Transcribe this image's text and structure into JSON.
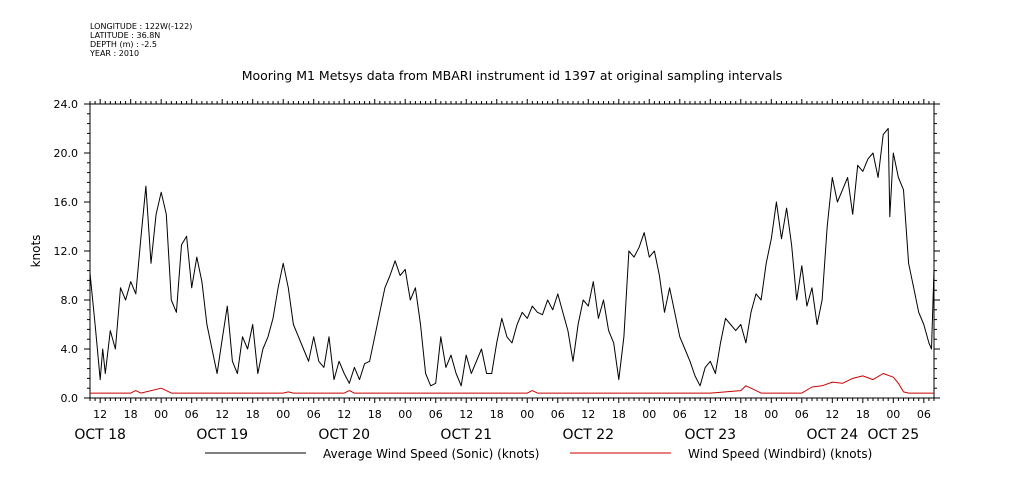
{
  "meta": {
    "longitude": "LONGITUDE : 122W(-122)",
    "latitude": "LATITUDE : 36.8N",
    "depth": "DEPTH (m) : -2.5",
    "year": "YEAR : 2010"
  },
  "chart_data": {
    "type": "line",
    "title": "Mooring M1 Metsys data from MBARI instrument id 1397 at original sampling intervals",
    "ylabel": "knots",
    "ylim": [
      0,
      24
    ],
    "yticks": [
      "0.0",
      "4.0",
      "8.0",
      "12.0",
      "16.0",
      "20.0",
      "24.0"
    ],
    "xlim": [
      10,
      176
    ],
    "hour_tick_labels": [
      {
        "h": 12,
        "label": "12"
      },
      {
        "h": 18,
        "label": "18"
      },
      {
        "h": 24,
        "label": "00"
      },
      {
        "h": 30,
        "label": "06"
      },
      {
        "h": 36,
        "label": "12"
      },
      {
        "h": 42,
        "label": "18"
      },
      {
        "h": 48,
        "label": "00"
      },
      {
        "h": 54,
        "label": "06"
      },
      {
        "h": 60,
        "label": "12"
      },
      {
        "h": 66,
        "label": "18"
      },
      {
        "h": 72,
        "label": "00"
      },
      {
        "h": 78,
        "label": "06"
      },
      {
        "h": 84,
        "label": "12"
      },
      {
        "h": 90,
        "label": "18"
      },
      {
        "h": 96,
        "label": "00"
      },
      {
        "h": 102,
        "label": "06"
      },
      {
        "h": 108,
        "label": "12"
      },
      {
        "h": 114,
        "label": "18"
      },
      {
        "h": 120,
        "label": "00"
      },
      {
        "h": 126,
        "label": "06"
      },
      {
        "h": 132,
        "label": "12"
      },
      {
        "h": 138,
        "label": "18"
      },
      {
        "h": 144,
        "label": "00"
      },
      {
        "h": 150,
        "label": "06"
      },
      {
        "h": 156,
        "label": "12"
      },
      {
        "h": 162,
        "label": "18"
      },
      {
        "h": 168,
        "label": "00"
      },
      {
        "h": 174,
        "label": "06"
      }
    ],
    "day_labels": [
      {
        "h": 12,
        "label": "OCT 18"
      },
      {
        "h": 36,
        "label": "OCT 19"
      },
      {
        "h": 60,
        "label": "OCT 20"
      },
      {
        "h": 84,
        "label": "OCT 21"
      },
      {
        "h": 108,
        "label": "OCT 22"
      },
      {
        "h": 132,
        "label": "OCT 23"
      },
      {
        "h": 156,
        "label": "OCT 24"
      },
      {
        "h": 168,
        "label": "OCT 25"
      }
    ],
    "series": [
      {
        "name": "Average Wind Speed (Sonic) (knots)",
        "color": "#000000",
        "points": [
          [
            10,
            10.2
          ],
          [
            11,
            6
          ],
          [
            12,
            1.5
          ],
          [
            12.5,
            4
          ],
          [
            13,
            2
          ],
          [
            14,
            5.5
          ],
          [
            15,
            4
          ],
          [
            16,
            9
          ],
          [
            17,
            8
          ],
          [
            18,
            9.5
          ],
          [
            19,
            8.5
          ],
          [
            20,
            13
          ],
          [
            21,
            17.3
          ],
          [
            22,
            11
          ],
          [
            23,
            15
          ],
          [
            24,
            16.8
          ],
          [
            25,
            15
          ],
          [
            26,
            8
          ],
          [
            27,
            7
          ],
          [
            28,
            12.5
          ],
          [
            29,
            13.2
          ],
          [
            30,
            9
          ],
          [
            31,
            11.5
          ],
          [
            32,
            9.5
          ],
          [
            33,
            6
          ],
          [
            34,
            4
          ],
          [
            35,
            2
          ],
          [
            36,
            4.8
          ],
          [
            37,
            7.5
          ],
          [
            38,
            3
          ],
          [
            39,
            2
          ],
          [
            40,
            5
          ],
          [
            41,
            4
          ],
          [
            42,
            6
          ],
          [
            43,
            2
          ],
          [
            44,
            4
          ],
          [
            45,
            5
          ],
          [
            46,
            6.5
          ],
          [
            47,
            9
          ],
          [
            48,
            11
          ],
          [
            49,
            9
          ],
          [
            50,
            6
          ],
          [
            51,
            5
          ],
          [
            52,
            4
          ],
          [
            53,
            3
          ],
          [
            54,
            5
          ],
          [
            55,
            3
          ],
          [
            56,
            2.5
          ],
          [
            57,
            5
          ],
          [
            58,
            1.5
          ],
          [
            59,
            3
          ],
          [
            60,
            2
          ],
          [
            61,
            1.2
          ],
          [
            62,
            2.5
          ],
          [
            63,
            1.5
          ],
          [
            64,
            2.8
          ],
          [
            65,
            3
          ],
          [
            66,
            5
          ],
          [
            67,
            7
          ],
          [
            68,
            9
          ],
          [
            69,
            10
          ],
          [
            70,
            11.2
          ],
          [
            71,
            10
          ],
          [
            72,
            10.5
          ],
          [
            73,
            8
          ],
          [
            74,
            9
          ],
          [
            75,
            6
          ],
          [
            76,
            2
          ],
          [
            77,
            1
          ],
          [
            78,
            1.2
          ],
          [
            79,
            5
          ],
          [
            80,
            2.5
          ],
          [
            81,
            3.5
          ],
          [
            82,
            2
          ],
          [
            83,
            1
          ],
          [
            84,
            3.5
          ],
          [
            85,
            2
          ],
          [
            86,
            3
          ],
          [
            87,
            4
          ],
          [
            88,
            2
          ],
          [
            89,
            2
          ],
          [
            90,
            4.5
          ],
          [
            91,
            6.5
          ],
          [
            92,
            5
          ],
          [
            93,
            4.5
          ],
          [
            94,
            6
          ],
          [
            95,
            7
          ],
          [
            96,
            6.5
          ],
          [
            97,
            7.5
          ],
          [
            98,
            7
          ],
          [
            99,
            6.8
          ],
          [
            100,
            8
          ],
          [
            101,
            7.2
          ],
          [
            102,
            8.5
          ],
          [
            103,
            7
          ],
          [
            104,
            5.5
          ],
          [
            105,
            3
          ],
          [
            106,
            6
          ],
          [
            107,
            8
          ],
          [
            108,
            7.5
          ],
          [
            109,
            9.5
          ],
          [
            110,
            6.5
          ],
          [
            111,
            8
          ],
          [
            112,
            5.5
          ],
          [
            113,
            4.5
          ],
          [
            114,
            1.5
          ],
          [
            115,
            5
          ],
          [
            116,
            12
          ],
          [
            117,
            11.5
          ],
          [
            118,
            12.3
          ],
          [
            119,
            13.5
          ],
          [
            120,
            11.5
          ],
          [
            121,
            12
          ],
          [
            122,
            10
          ],
          [
            123,
            7
          ],
          [
            124,
            9
          ],
          [
            125,
            7
          ],
          [
            126,
            5
          ],
          [
            127,
            4
          ],
          [
            128,
            3
          ],
          [
            129,
            1.8
          ],
          [
            130,
            1
          ],
          [
            131,
            2.5
          ],
          [
            132,
            3
          ],
          [
            133,
            2
          ],
          [
            134,
            4.5
          ],
          [
            135,
            6.5
          ],
          [
            136,
            6
          ],
          [
            137,
            5.5
          ],
          [
            138,
            6
          ],
          [
            139,
            4.5
          ],
          [
            140,
            7
          ],
          [
            141,
            8.5
          ],
          [
            142,
            8
          ],
          [
            143,
            11
          ],
          [
            144,
            13
          ],
          [
            145,
            16
          ],
          [
            146,
            13
          ],
          [
            147,
            15.5
          ],
          [
            148,
            12.5
          ],
          [
            149,
            8
          ],
          [
            150,
            10.8
          ],
          [
            151,
            7.5
          ],
          [
            152,
            9
          ],
          [
            153,
            6
          ],
          [
            154,
            8
          ],
          [
            155,
            14
          ],
          [
            156,
            18
          ],
          [
            157,
            16
          ],
          [
            158,
            17
          ],
          [
            159,
            18
          ],
          [
            160,
            15
          ],
          [
            161,
            19
          ],
          [
            162,
            18.5
          ],
          [
            163,
            19.5
          ],
          [
            164,
            20
          ],
          [
            165,
            18
          ],
          [
            166,
            21.5
          ],
          [
            167,
            22
          ],
          [
            167.3,
            14.8
          ],
          [
            168,
            20
          ],
          [
            169,
            18
          ],
          [
            170,
            17
          ],
          [
            171,
            11
          ],
          [
            172,
            9
          ],
          [
            173,
            7
          ],
          [
            174,
            6
          ],
          [
            175,
            4.5
          ],
          [
            175.5,
            4
          ],
          [
            176,
            10.5
          ]
        ]
      },
      {
        "name": "Wind Speed (Windbird) (knots)",
        "color": "#cc0000",
        "points": [
          [
            10,
            0.4
          ],
          [
            18,
            0.4
          ],
          [
            19,
            0.6
          ],
          [
            20,
            0.4
          ],
          [
            24,
            0.8
          ],
          [
            25,
            0.6
          ],
          [
            26,
            0.4
          ],
          [
            48,
            0.4
          ],
          [
            49,
            0.5
          ],
          [
            50,
            0.4
          ],
          [
            60,
            0.4
          ],
          [
            61,
            0.6
          ],
          [
            62,
            0.4
          ],
          [
            96,
            0.4
          ],
          [
            97,
            0.6
          ],
          [
            98,
            0.4
          ],
          [
            132,
            0.4
          ],
          [
            138,
            0.6
          ],
          [
            139,
            1.0
          ],
          [
            140,
            0.8
          ],
          [
            141,
            0.6
          ],
          [
            142,
            0.4
          ],
          [
            150,
            0.4
          ],
          [
            152,
            0.9
          ],
          [
            154,
            1.0
          ],
          [
            156,
            1.3
          ],
          [
            158,
            1.2
          ],
          [
            160,
            1.6
          ],
          [
            162,
            1.8
          ],
          [
            164,
            1.5
          ],
          [
            166,
            2.0
          ],
          [
            168,
            1.7
          ],
          [
            169,
            1.2
          ],
          [
            170,
            0.5
          ],
          [
            171,
            0.4
          ],
          [
            176,
            0.4
          ]
        ]
      }
    ]
  }
}
